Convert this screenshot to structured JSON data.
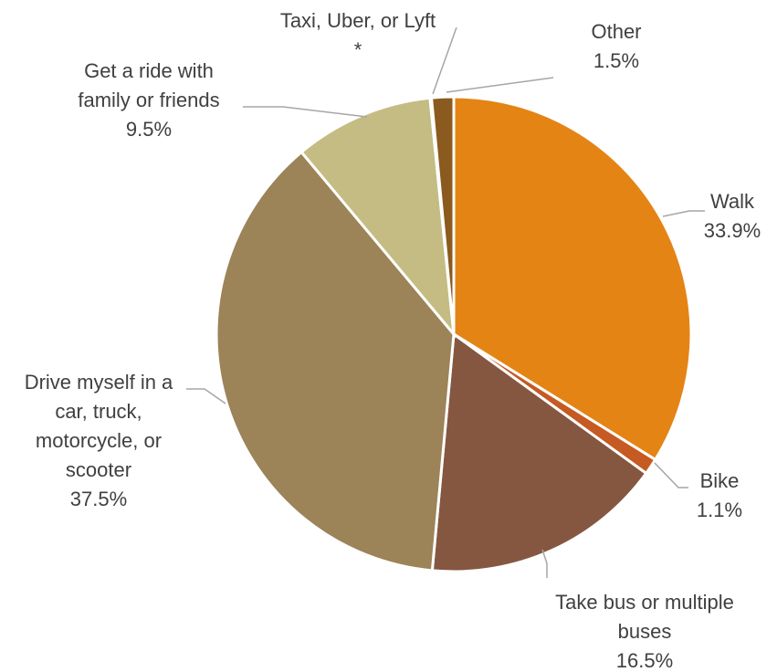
{
  "chart_data": {
    "type": "pie",
    "title": "",
    "start": "12 o'clock, clockwise",
    "slices": [
      {
        "lines": [
          "Walk"
        ],
        "value_label": "33.9%",
        "value": 33.9,
        "color": "#E48415"
      },
      {
        "lines": [
          "Bike"
        ],
        "value_label": "1.1%",
        "value": 1.1,
        "color": "#C55A22"
      },
      {
        "lines": [
          "Take bus or multiple",
          "buses"
        ],
        "value_label": "16.5%",
        "value": 16.5,
        "color": "#855741"
      },
      {
        "lines": [
          "Drive myself in a",
          "car, truck,",
          "motorcycle, or",
          "scooter"
        ],
        "value_label": "37.5%",
        "value": 37.5,
        "color": "#9C8358"
      },
      {
        "lines": [
          "Get a ride with",
          "family or friends"
        ],
        "value_label": "9.5%",
        "value": 9.5,
        "color": "#C4BC83"
      },
      {
        "lines": [
          "Taxi, Uber, or Lyft"
        ],
        "value_label": "*",
        "value": 0.1,
        "color": "#6B4A2E"
      },
      {
        "lines": [
          "Other"
        ],
        "value_label": "1.5%",
        "value": 1.5,
        "color": "#8A5A1E"
      }
    ]
  }
}
